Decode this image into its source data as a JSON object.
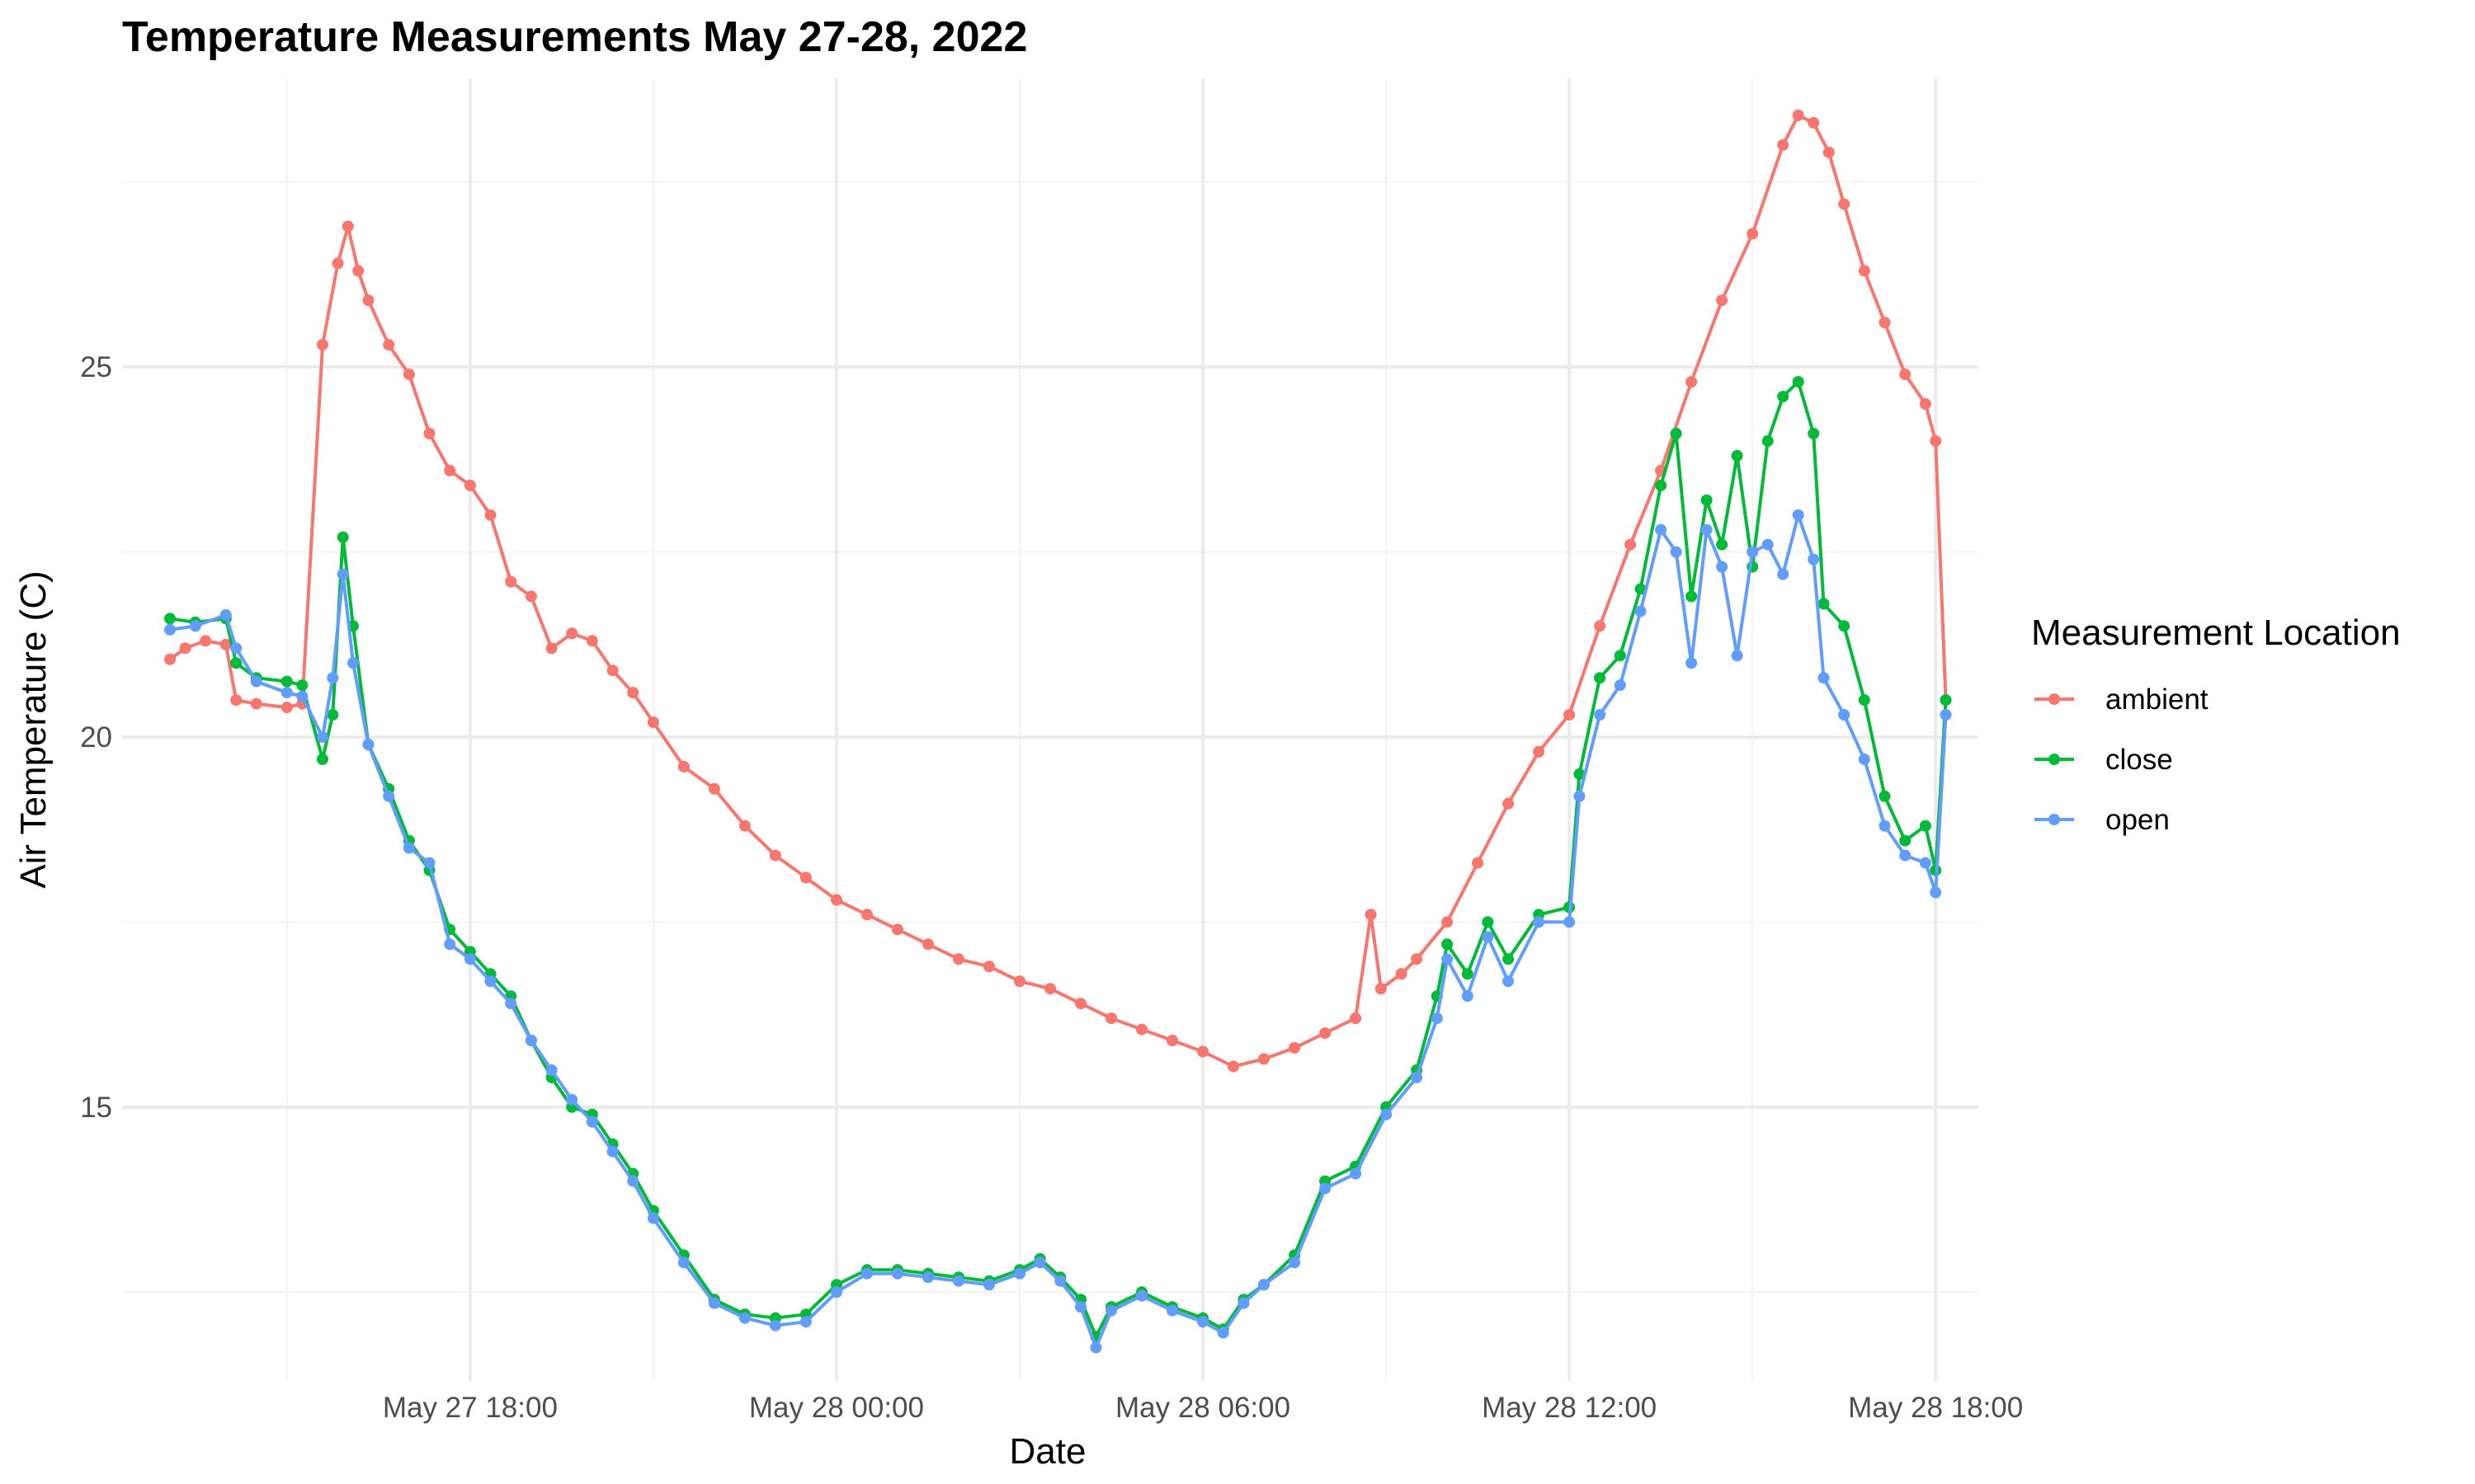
{
  "chart_data": {
    "type": "line",
    "title": "Temperature Measurements May 27-28, 2022",
    "xlabel": "Date",
    "ylabel": "Air Temperature (C)",
    "x_unit": "datetime",
    "xlim": [
      "2022-05-27 12:18",
      "2022-05-28 18:42"
    ],
    "ylim": [
      11.3,
      28.9
    ],
    "x_ticks": [
      {
        "t": "2022-05-27 18:00",
        "label": "May 27 18:00"
      },
      {
        "t": "2022-05-28 00:00",
        "label": "May 28 00:00"
      },
      {
        "t": "2022-05-28 06:00",
        "label": "May 28 06:00"
      },
      {
        "t": "2022-05-28 12:00",
        "label": "May 28 12:00"
      },
      {
        "t": "2022-05-28 18:00",
        "label": "May 28 18:00"
      }
    ],
    "y_ticks": [
      15,
      20,
      25
    ],
    "grid": true,
    "legend": {
      "title": "Measurement Location",
      "position": "right"
    },
    "series": [
      {
        "name": "ambient",
        "color": "#F8766D",
        "points": [
          [
            "2022-05-27 13:05",
            21.05
          ],
          [
            "2022-05-27 13:20",
            21.2
          ],
          [
            "2022-05-27 13:40",
            21.3
          ],
          [
            "2022-05-27 14:00",
            21.25
          ],
          [
            "2022-05-27 14:10",
            20.5
          ],
          [
            "2022-05-27 14:30",
            20.45
          ],
          [
            "2022-05-27 15:00",
            20.4
          ],
          [
            "2022-05-27 15:15",
            20.45
          ],
          [
            "2022-05-27 15:35",
            25.3
          ],
          [
            "2022-05-27 15:50",
            26.4
          ],
          [
            "2022-05-27 16:00",
            26.9
          ],
          [
            "2022-05-27 16:10",
            26.3
          ],
          [
            "2022-05-27 16:20",
            25.9
          ],
          [
            "2022-05-27 16:40",
            25.3
          ],
          [
            "2022-05-27 17:00",
            24.9
          ],
          [
            "2022-05-27 17:20",
            24.1
          ],
          [
            "2022-05-27 17:40",
            23.6
          ],
          [
            "2022-05-27 18:00",
            23.4
          ],
          [
            "2022-05-27 18:20",
            23.0
          ],
          [
            "2022-05-27 18:40",
            22.1
          ],
          [
            "2022-05-27 19:00",
            21.9
          ],
          [
            "2022-05-27 19:20",
            21.2
          ],
          [
            "2022-05-27 19:40",
            21.4
          ],
          [
            "2022-05-27 20:00",
            21.3
          ],
          [
            "2022-05-27 20:20",
            20.9
          ],
          [
            "2022-05-27 20:40",
            20.6
          ],
          [
            "2022-05-27 21:00",
            20.2
          ],
          [
            "2022-05-27 21:30",
            19.6
          ],
          [
            "2022-05-27 22:00",
            19.3
          ],
          [
            "2022-05-27 22:30",
            18.8
          ],
          [
            "2022-05-27 23:00",
            18.4
          ],
          [
            "2022-05-27 23:30",
            18.1
          ],
          [
            "2022-05-28 00:00",
            17.8
          ],
          [
            "2022-05-28 00:30",
            17.6
          ],
          [
            "2022-05-28 01:00",
            17.4
          ],
          [
            "2022-05-28 01:30",
            17.2
          ],
          [
            "2022-05-28 02:00",
            17.0
          ],
          [
            "2022-05-28 02:30",
            16.9
          ],
          [
            "2022-05-28 03:00",
            16.7
          ],
          [
            "2022-05-28 03:30",
            16.6
          ],
          [
            "2022-05-28 04:00",
            16.4
          ],
          [
            "2022-05-28 04:30",
            16.2
          ],
          [
            "2022-05-28 05:00",
            16.05
          ],
          [
            "2022-05-28 05:30",
            15.9
          ],
          [
            "2022-05-28 06:00",
            15.75
          ],
          [
            "2022-05-28 06:30",
            15.55
          ],
          [
            "2022-05-28 07:00",
            15.65
          ],
          [
            "2022-05-28 07:30",
            15.8
          ],
          [
            "2022-05-28 08:00",
            16.0
          ],
          [
            "2022-05-28 08:30",
            16.2
          ],
          [
            "2022-05-28 08:45",
            17.6
          ],
          [
            "2022-05-28 08:55",
            16.6
          ],
          [
            "2022-05-28 09:15",
            16.8
          ],
          [
            "2022-05-28 09:30",
            17.0
          ],
          [
            "2022-05-28 10:00",
            17.5
          ],
          [
            "2022-05-28 10:30",
            18.3
          ],
          [
            "2022-05-28 11:00",
            19.1
          ],
          [
            "2022-05-28 11:30",
            19.8
          ],
          [
            "2022-05-28 12:00",
            20.3
          ],
          [
            "2022-05-28 12:30",
            21.5
          ],
          [
            "2022-05-28 13:00",
            22.6
          ],
          [
            "2022-05-28 13:30",
            23.6
          ],
          [
            "2022-05-28 14:00",
            24.8
          ],
          [
            "2022-05-28 14:30",
            25.9
          ],
          [
            "2022-05-28 15:00",
            26.8
          ],
          [
            "2022-05-28 15:30",
            28.0
          ],
          [
            "2022-05-28 15:45",
            28.4
          ],
          [
            "2022-05-28 16:00",
            28.3
          ],
          [
            "2022-05-28 16:15",
            27.9
          ],
          [
            "2022-05-28 16:30",
            27.2
          ],
          [
            "2022-05-28 16:50",
            26.3
          ],
          [
            "2022-05-28 17:10",
            25.6
          ],
          [
            "2022-05-28 17:30",
            24.9
          ],
          [
            "2022-05-28 17:50",
            24.5
          ],
          [
            "2022-05-28 18:00",
            24.0
          ],
          [
            "2022-05-28 18:10",
            20.5
          ]
        ]
      },
      {
        "name": "close",
        "color": "#00BA38",
        "points": [
          [
            "2022-05-27 13:05",
            21.6
          ],
          [
            "2022-05-27 13:30",
            21.55
          ],
          [
            "2022-05-27 14:00",
            21.6
          ],
          [
            "2022-05-27 14:10",
            21.0
          ],
          [
            "2022-05-27 14:30",
            20.8
          ],
          [
            "2022-05-27 15:00",
            20.75
          ],
          [
            "2022-05-27 15:15",
            20.7
          ],
          [
            "2022-05-27 15:35",
            19.7
          ],
          [
            "2022-05-27 15:45",
            20.3
          ],
          [
            "2022-05-27 15:55",
            22.7
          ],
          [
            "2022-05-27 16:05",
            21.5
          ],
          [
            "2022-05-27 16:20",
            19.9
          ],
          [
            "2022-05-27 16:40",
            19.3
          ],
          [
            "2022-05-27 17:00",
            18.6
          ],
          [
            "2022-05-27 17:20",
            18.2
          ],
          [
            "2022-05-27 17:40",
            17.4
          ],
          [
            "2022-05-27 18:00",
            17.1
          ],
          [
            "2022-05-27 18:20",
            16.8
          ],
          [
            "2022-05-27 18:40",
            16.5
          ],
          [
            "2022-05-27 19:00",
            15.9
          ],
          [
            "2022-05-27 19:20",
            15.4
          ],
          [
            "2022-05-27 19:40",
            15.0
          ],
          [
            "2022-05-27 20:00",
            14.9
          ],
          [
            "2022-05-27 20:20",
            14.5
          ],
          [
            "2022-05-27 20:40",
            14.1
          ],
          [
            "2022-05-27 21:00",
            13.6
          ],
          [
            "2022-05-27 21:30",
            13.0
          ],
          [
            "2022-05-27 22:00",
            12.4
          ],
          [
            "2022-05-27 22:30",
            12.2
          ],
          [
            "2022-05-27 23:00",
            12.15
          ],
          [
            "2022-05-27 23:30",
            12.2
          ],
          [
            "2022-05-28 00:00",
            12.6
          ],
          [
            "2022-05-28 00:30",
            12.8
          ],
          [
            "2022-05-28 01:00",
            12.8
          ],
          [
            "2022-05-28 01:30",
            12.75
          ],
          [
            "2022-05-28 02:00",
            12.7
          ],
          [
            "2022-05-28 02:30",
            12.65
          ],
          [
            "2022-05-28 03:00",
            12.8
          ],
          [
            "2022-05-28 03:20",
            12.95
          ],
          [
            "2022-05-28 03:40",
            12.7
          ],
          [
            "2022-05-28 04:00",
            12.4
          ],
          [
            "2022-05-28 04:15",
            11.9
          ],
          [
            "2022-05-28 04:30",
            12.3
          ],
          [
            "2022-05-28 05:00",
            12.5
          ],
          [
            "2022-05-28 05:30",
            12.3
          ],
          [
            "2022-05-28 06:00",
            12.15
          ],
          [
            "2022-05-28 06:20",
            12.0
          ],
          [
            "2022-05-28 06:40",
            12.4
          ],
          [
            "2022-05-28 07:00",
            12.6
          ],
          [
            "2022-05-28 07:30",
            13.0
          ],
          [
            "2022-05-28 08:00",
            14.0
          ],
          [
            "2022-05-28 08:30",
            14.2
          ],
          [
            "2022-05-28 09:00",
            15.0
          ],
          [
            "2022-05-28 09:30",
            15.5
          ],
          [
            "2022-05-28 09:50",
            16.5
          ],
          [
            "2022-05-28 10:00",
            17.2
          ],
          [
            "2022-05-28 10:20",
            16.8
          ],
          [
            "2022-05-28 10:40",
            17.5
          ],
          [
            "2022-05-28 11:00",
            17.0
          ],
          [
            "2022-05-28 11:30",
            17.6
          ],
          [
            "2022-05-28 12:00",
            17.7
          ],
          [
            "2022-05-28 12:10",
            19.5
          ],
          [
            "2022-05-28 12:30",
            20.8
          ],
          [
            "2022-05-28 12:50",
            21.1
          ],
          [
            "2022-05-28 13:10",
            22.0
          ],
          [
            "2022-05-28 13:30",
            23.4
          ],
          [
            "2022-05-28 13:45",
            24.1
          ],
          [
            "2022-05-28 14:00",
            21.9
          ],
          [
            "2022-05-28 14:15",
            23.2
          ],
          [
            "2022-05-28 14:30",
            22.6
          ],
          [
            "2022-05-28 14:45",
            23.8
          ],
          [
            "2022-05-28 15:00",
            22.3
          ],
          [
            "2022-05-28 15:15",
            24.0
          ],
          [
            "2022-05-28 15:30",
            24.6
          ],
          [
            "2022-05-28 15:45",
            24.8
          ],
          [
            "2022-05-28 16:00",
            24.1
          ],
          [
            "2022-05-28 16:10",
            21.8
          ],
          [
            "2022-05-28 16:30",
            21.5
          ],
          [
            "2022-05-28 16:50",
            20.5
          ],
          [
            "2022-05-28 17:10",
            19.2
          ],
          [
            "2022-05-28 17:30",
            18.6
          ],
          [
            "2022-05-28 17:50",
            18.8
          ],
          [
            "2022-05-28 18:00",
            18.2
          ],
          [
            "2022-05-28 18:10",
            20.5
          ]
        ]
      },
      {
        "name": "open",
        "color": "#619CFF",
        "points": [
          [
            "2022-05-27 13:05",
            21.45
          ],
          [
            "2022-05-27 13:30",
            21.5
          ],
          [
            "2022-05-27 14:00",
            21.65
          ],
          [
            "2022-05-27 14:10",
            21.2
          ],
          [
            "2022-05-27 14:30",
            20.75
          ],
          [
            "2022-05-27 15:00",
            20.6
          ],
          [
            "2022-05-27 15:15",
            20.55
          ],
          [
            "2022-05-27 15:35",
            20.0
          ],
          [
            "2022-05-27 15:45",
            20.8
          ],
          [
            "2022-05-27 15:55",
            22.2
          ],
          [
            "2022-05-27 16:05",
            21.0
          ],
          [
            "2022-05-27 16:20",
            19.9
          ],
          [
            "2022-05-27 16:40",
            19.2
          ],
          [
            "2022-05-27 17:00",
            18.5
          ],
          [
            "2022-05-27 17:20",
            18.3
          ],
          [
            "2022-05-27 17:40",
            17.2
          ],
          [
            "2022-05-27 18:00",
            17.0
          ],
          [
            "2022-05-27 18:20",
            16.7
          ],
          [
            "2022-05-27 18:40",
            16.4
          ],
          [
            "2022-05-27 19:00",
            15.9
          ],
          [
            "2022-05-27 19:20",
            15.5
          ],
          [
            "2022-05-27 19:40",
            15.1
          ],
          [
            "2022-05-27 20:00",
            14.8
          ],
          [
            "2022-05-27 20:20",
            14.4
          ],
          [
            "2022-05-27 20:40",
            14.0
          ],
          [
            "2022-05-27 21:00",
            13.5
          ],
          [
            "2022-05-27 21:30",
            12.9
          ],
          [
            "2022-05-27 22:00",
            12.35
          ],
          [
            "2022-05-27 22:30",
            12.15
          ],
          [
            "2022-05-27 23:00",
            12.05
          ],
          [
            "2022-05-27 23:30",
            12.1
          ],
          [
            "2022-05-28 00:00",
            12.5
          ],
          [
            "2022-05-28 00:30",
            12.75
          ],
          [
            "2022-05-28 01:00",
            12.75
          ],
          [
            "2022-05-28 01:30",
            12.7
          ],
          [
            "2022-05-28 02:00",
            12.65
          ],
          [
            "2022-05-28 02:30",
            12.6
          ],
          [
            "2022-05-28 03:00",
            12.75
          ],
          [
            "2022-05-28 03:20",
            12.9
          ],
          [
            "2022-05-28 03:40",
            12.65
          ],
          [
            "2022-05-28 04:00",
            12.3
          ],
          [
            "2022-05-28 04:15",
            11.75
          ],
          [
            "2022-05-28 04:30",
            12.25
          ],
          [
            "2022-05-28 05:00",
            12.45
          ],
          [
            "2022-05-28 05:30",
            12.25
          ],
          [
            "2022-05-28 06:00",
            12.1
          ],
          [
            "2022-05-28 06:20",
            11.95
          ],
          [
            "2022-05-28 06:40",
            12.35
          ],
          [
            "2022-05-28 07:00",
            12.6
          ],
          [
            "2022-05-28 07:30",
            12.9
          ],
          [
            "2022-05-28 08:00",
            13.9
          ],
          [
            "2022-05-28 08:30",
            14.1
          ],
          [
            "2022-05-28 09:00",
            14.9
          ],
          [
            "2022-05-28 09:30",
            15.4
          ],
          [
            "2022-05-28 09:50",
            16.2
          ],
          [
            "2022-05-28 10:00",
            17.0
          ],
          [
            "2022-05-28 10:20",
            16.5
          ],
          [
            "2022-05-28 10:40",
            17.3
          ],
          [
            "2022-05-28 11:00",
            16.7
          ],
          [
            "2022-05-28 11:30",
            17.5
          ],
          [
            "2022-05-28 12:00",
            17.5
          ],
          [
            "2022-05-28 12:10",
            19.2
          ],
          [
            "2022-05-28 12:30",
            20.3
          ],
          [
            "2022-05-28 12:50",
            20.7
          ],
          [
            "2022-05-28 13:10",
            21.7
          ],
          [
            "2022-05-28 13:30",
            22.8
          ],
          [
            "2022-05-28 13:45",
            22.5
          ],
          [
            "2022-05-28 14:00",
            21.0
          ],
          [
            "2022-05-28 14:15",
            22.8
          ],
          [
            "2022-05-28 14:30",
            22.3
          ],
          [
            "2022-05-28 14:45",
            21.1
          ],
          [
            "2022-05-28 15:00",
            22.5
          ],
          [
            "2022-05-28 15:15",
            22.6
          ],
          [
            "2022-05-28 15:30",
            22.2
          ],
          [
            "2022-05-28 15:45",
            23.0
          ],
          [
            "2022-05-28 16:00",
            22.4
          ],
          [
            "2022-05-28 16:10",
            20.8
          ],
          [
            "2022-05-28 16:30",
            20.3
          ],
          [
            "2022-05-28 16:50",
            19.7
          ],
          [
            "2022-05-28 17:10",
            18.8
          ],
          [
            "2022-05-28 17:30",
            18.4
          ],
          [
            "2022-05-28 17:50",
            18.3
          ],
          [
            "2022-05-28 18:00",
            17.9
          ],
          [
            "2022-05-28 18:10",
            20.3
          ]
        ]
      }
    ]
  }
}
